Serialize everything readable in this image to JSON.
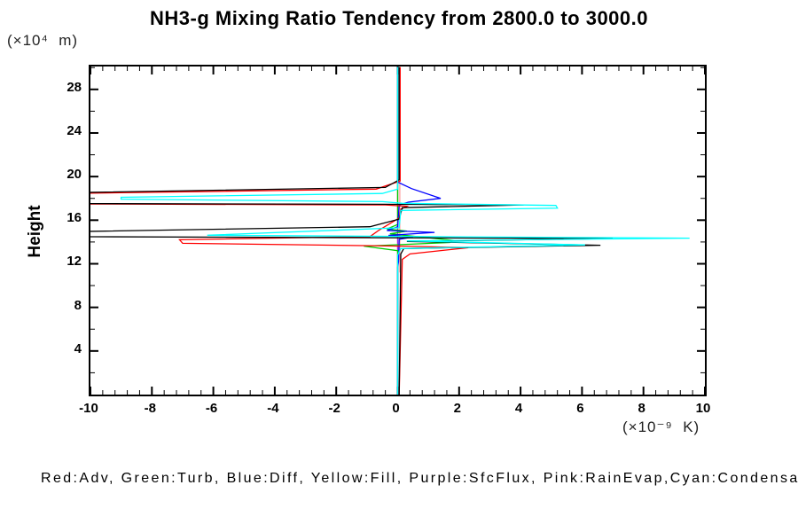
{
  "title": "NH3-g Mixing Ratio Tendency from 2800.0 to 3000.0",
  "y_axis_unit": "(×10⁴  m)",
  "y_axis_label": "Height",
  "x_axis_unit": "(×10⁻⁹  K)",
  "legend_text": "Red:Adv, Green:Turb, Blue:Diff, Yellow:Fill, Purple:SfcFlux, Pink:RainEvap,Cyan:Condensation",
  "colors": {
    "red": "#ff0000",
    "green": "#00cc00",
    "blue": "#0000ff",
    "yellow": "#ffff00",
    "purple": "#a020f0",
    "pink": "#ff9e9e",
    "cyan": "#00ffff",
    "black": "#000000"
  },
  "chart_data": {
    "type": "line",
    "title": "NH3-g Mixing Ratio Tendency from 2800.0 to 3000.0",
    "xlabel": "(×10⁻⁹ K)",
    "ylabel": "Height (×10⁴ m)",
    "xlim": [
      -10,
      10
    ],
    "ylim": [
      0,
      30.1
    ],
    "grid": false,
    "legend_position": "bottom-text-line",
    "x_major_ticks": [
      -10,
      -8,
      -6,
      -4,
      -2,
      0,
      2,
      4,
      6,
      8,
      10
    ],
    "x_tick_labels": [
      "-10",
      "-8",
      "-6",
      "-4",
      "-2",
      "0",
      "2",
      "4",
      "6",
      "8",
      "10"
    ],
    "x_minor_step": 0.4,
    "y_major_ticks": [
      4,
      8,
      12,
      16,
      20,
      24,
      28
    ],
    "y_tick_labels": [
      "4",
      "8",
      "12",
      "16",
      "20",
      "24",
      "28"
    ],
    "y_minor_step": 2,
    "series": [
      {
        "name": "Fill",
        "legend": "Yellow:Fill",
        "color": "#ffff00",
        "points": [
          [
            0,
            30.05
          ],
          [
            0,
            0
          ]
        ]
      },
      {
        "name": "SfcFlux",
        "legend": "Purple:SfcFlux",
        "color": "#a020f0",
        "points": [
          [
            0,
            30.05
          ],
          [
            0,
            0
          ]
        ]
      },
      {
        "name": "RainEvap",
        "legend": "Pink:RainEvap",
        "color": "#ff9e9e",
        "points": [
          [
            0.07,
            20.5
          ],
          [
            0.07,
            11.2
          ]
        ]
      },
      {
        "name": "Turb",
        "legend": "Green:Turb",
        "color": "#00cc00",
        "points": [
          [
            0,
            30.05
          ],
          [
            0,
            15.6
          ],
          [
            -0.35,
            15.2
          ],
          [
            0.3,
            15.0
          ],
          [
            -0.25,
            14.75
          ],
          [
            1.8,
            14.15
          ],
          [
            1.7,
            13.95
          ],
          [
            -1.1,
            13.62
          ],
          [
            0,
            13.2
          ],
          [
            0,
            0
          ]
        ]
      },
      {
        "name": "Diff",
        "legend": "Blue:Diff",
        "color": "#0000ff",
        "points": [
          [
            0,
            30.05
          ],
          [
            0,
            19.5
          ],
          [
            0.45,
            18.9
          ],
          [
            1.4,
            18.0
          ],
          [
            0.35,
            17.65
          ],
          [
            0.05,
            17.4
          ],
          [
            0,
            15.4
          ],
          [
            -0.35,
            15.05
          ],
          [
            1.2,
            14.88
          ],
          [
            -0.3,
            14.6
          ],
          [
            0.5,
            14.45
          ],
          [
            0.05,
            14.25
          ],
          [
            0.03,
            12.2
          ],
          [
            0,
            11.7
          ],
          [
            0,
            0
          ]
        ]
      },
      {
        "name": "Adv",
        "legend": "Red:Adv",
        "color": "#ff0000",
        "points": [
          [
            0.08,
            30.05
          ],
          [
            0.08,
            19.6
          ],
          [
            -0.7,
            18.85
          ],
          [
            -11.5,
            18.42
          ],
          [
            -11.5,
            17.5
          ],
          [
            -0.4,
            17.4
          ],
          [
            0.3,
            17.28
          ],
          [
            0.1,
            17.0
          ],
          [
            0.05,
            16.2
          ],
          [
            -0.6,
            15.1
          ],
          [
            -0.9,
            14.5
          ],
          [
            -7.1,
            14.2
          ],
          [
            -7.0,
            13.88
          ],
          [
            0.2,
            13.62
          ],
          [
            2.3,
            13.48
          ],
          [
            0.4,
            12.9
          ],
          [
            0.15,
            12.4
          ],
          [
            0.05,
            0
          ]
        ]
      },
      {
        "name": "unlabeled-black",
        "legend": "",
        "color": "#000000",
        "points": [
          [
            0.05,
            30.05
          ],
          [
            0.05,
            19.7
          ],
          [
            -0.4,
            19.0
          ],
          [
            -11.5,
            18.48
          ],
          [
            -11.5,
            17.53
          ],
          [
            -0.4,
            17.46
          ],
          [
            4.1,
            17.4
          ],
          [
            0.15,
            17.15
          ],
          [
            0.05,
            16.1
          ],
          [
            -0.9,
            15.4
          ],
          [
            -11.5,
            14.9
          ],
          [
            -11.5,
            14.5
          ],
          [
            7.0,
            14.32
          ],
          [
            0.3,
            14.05
          ],
          [
            6.6,
            13.7
          ],
          [
            0.2,
            13.4
          ],
          [
            0.1,
            12.9
          ],
          [
            0.05,
            0
          ]
        ]
      },
      {
        "name": "Condensation",
        "legend": "Cyan:Condensation",
        "color": "#00ffff",
        "points": [
          [
            0,
            30.05
          ],
          [
            0,
            18.85
          ],
          [
            -0.5,
            18.45
          ],
          [
            -9.0,
            18.1
          ],
          [
            -9.0,
            17.93
          ],
          [
            -0.5,
            17.7
          ],
          [
            0.15,
            17.55
          ],
          [
            5.15,
            17.35
          ],
          [
            5.2,
            17.1
          ],
          [
            0.1,
            16.9
          ],
          [
            0.05,
            15.3
          ],
          [
            -6.2,
            14.62
          ],
          [
            9.5,
            14.35
          ],
          [
            0.3,
            14.1
          ],
          [
            6.1,
            13.73
          ],
          [
            0.1,
            13.4
          ],
          [
            0,
            12.8
          ],
          [
            0,
            0
          ]
        ]
      }
    ]
  }
}
